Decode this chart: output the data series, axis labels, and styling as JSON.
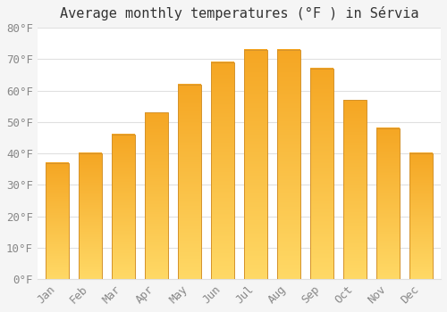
{
  "title": "Average monthly temperatures (°F ) in Sérvia",
  "months": [
    "Jan",
    "Feb",
    "Mar",
    "Apr",
    "May",
    "Jun",
    "Jul",
    "Aug",
    "Sep",
    "Oct",
    "Nov",
    "Dec"
  ],
  "values": [
    37,
    40,
    46,
    53,
    62,
    69,
    73,
    73,
    67,
    57,
    48,
    40
  ],
  "bar_color_bottom": "#F5A623",
  "bar_color_top": "#FFD966",
  "bar_edge_color": "#D4922A",
  "background_color": "#F5F5F5",
  "plot_bg_color": "#FFFFFF",
  "grid_color": "#E0E0E0",
  "ytick_labels": [
    "0°F",
    "10°F",
    "20°F",
    "30°F",
    "40°F",
    "50°F",
    "60°F",
    "70°F",
    "80°F"
  ],
  "ytick_values": [
    0,
    10,
    20,
    30,
    40,
    50,
    60,
    70,
    80
  ],
  "ylim": [
    0,
    80
  ],
  "label_color": "#888888",
  "title_color": "#333333",
  "title_fontsize": 11,
  "tick_fontsize": 9,
  "bar_width": 0.7
}
